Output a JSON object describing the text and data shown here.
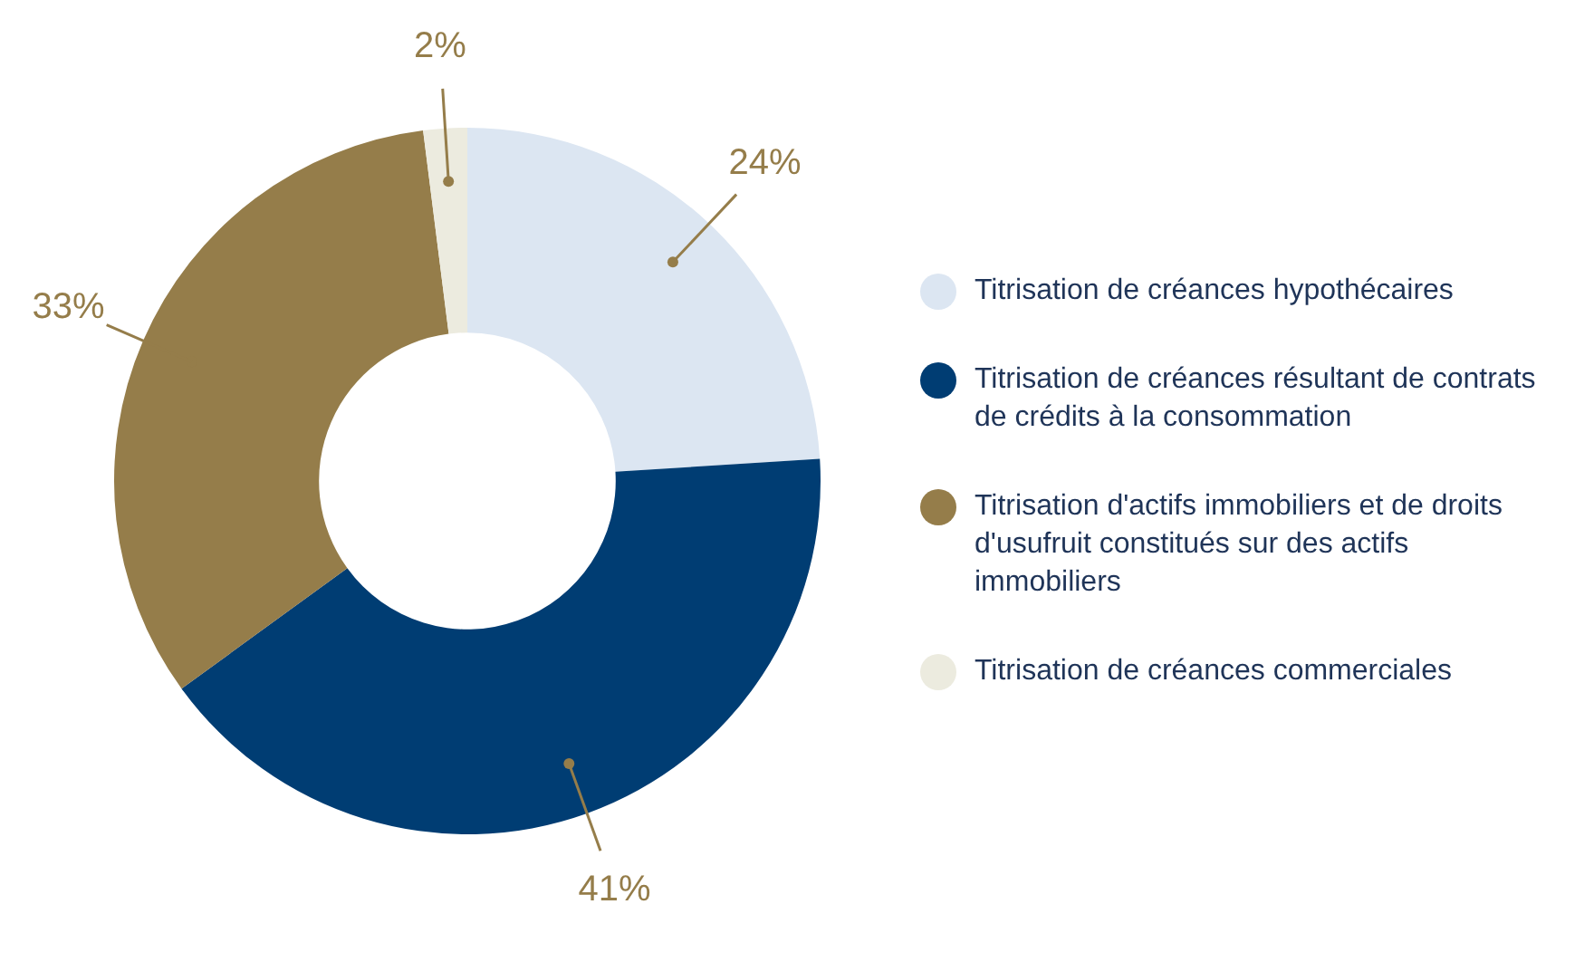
{
  "chart_data": {
    "type": "donut",
    "categories": [
      "Titrisation de créances hypothécaires",
      "Titrisation de créances résultant de contrats de crédits à la consommation",
      "Titrisation d'actifs immobiliers et de droits d'usufruit constitués sur des actifs immobiliers",
      "Titrisation de créances commerciales"
    ],
    "values": [
      24,
      41,
      33,
      2
    ],
    "colors": [
      "#dce6f2",
      "#003d73",
      "#957d4a",
      "#ecebdf"
    ],
    "value_labels": [
      "24%",
      "41%",
      "33%",
      "2%"
    ],
    "legend": "right"
  }
}
